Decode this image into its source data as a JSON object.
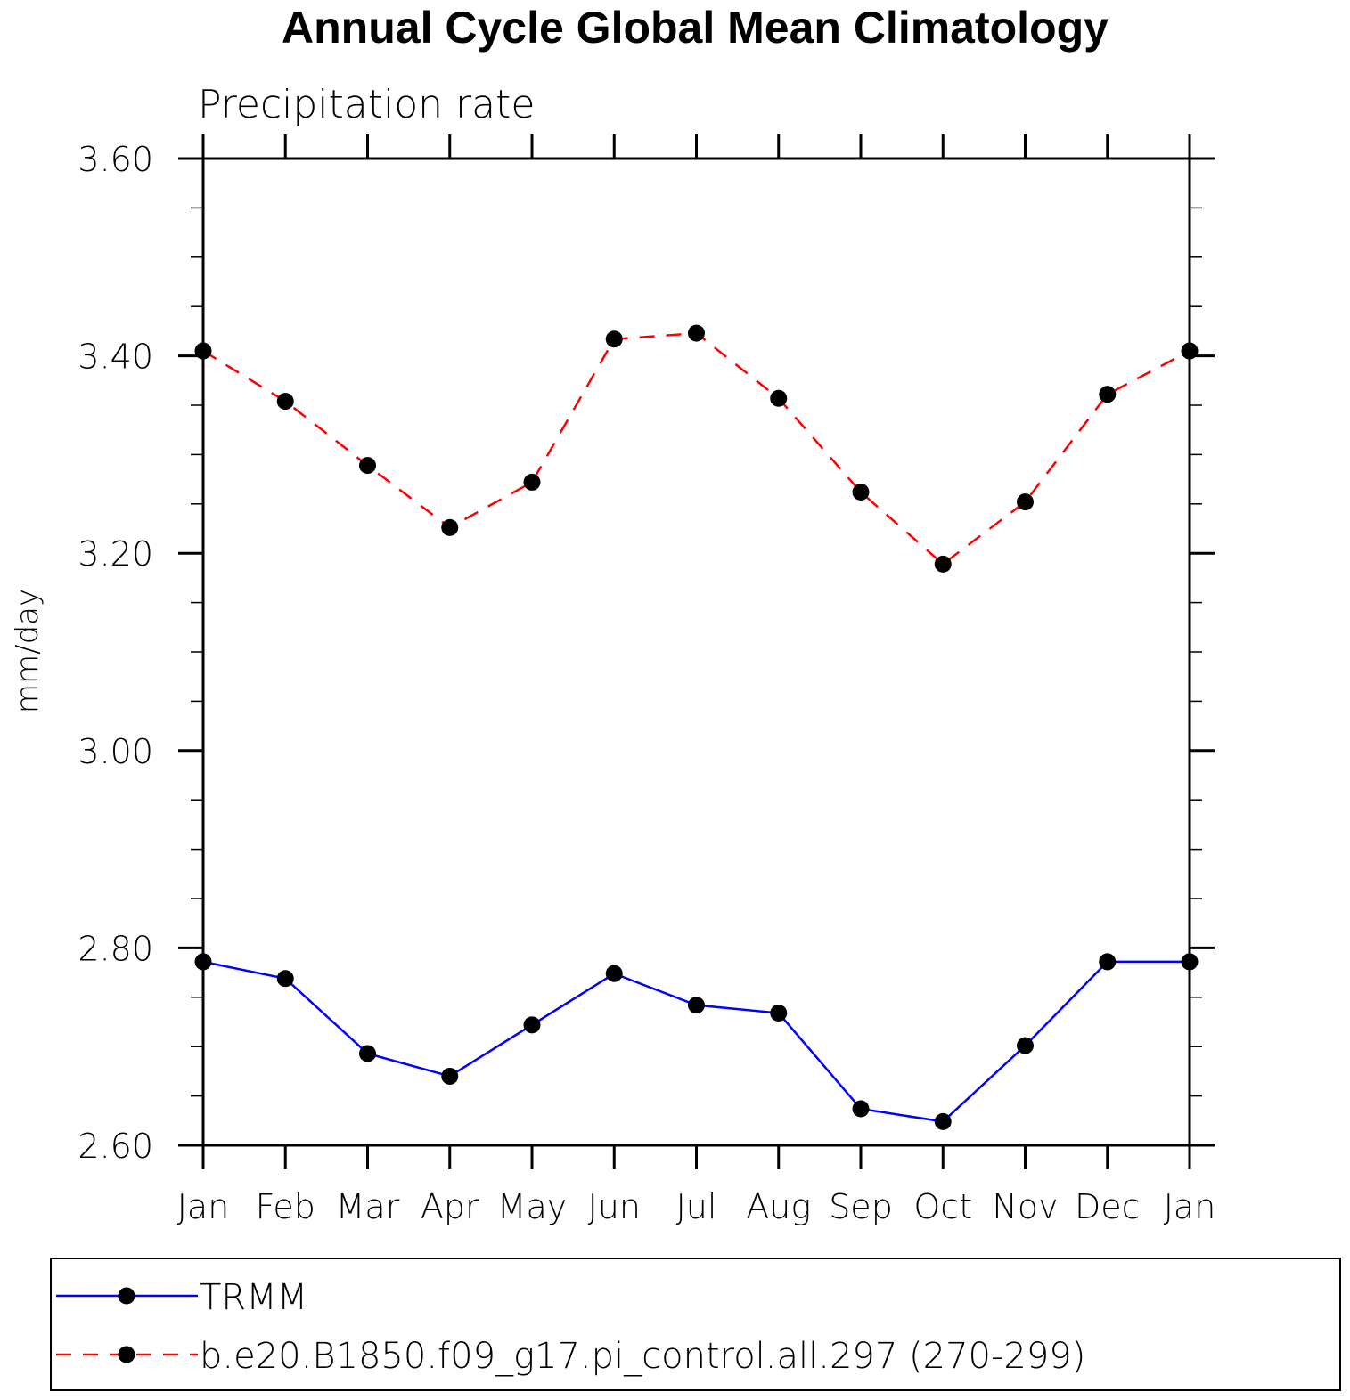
{
  "chart_data": {
    "type": "line",
    "title": "Annual Cycle Global Mean Climatology",
    "subtitle": "Precipitation rate",
    "xlabel": "",
    "ylabel": "mm/day",
    "categories": [
      "Jan",
      "Feb",
      "Mar",
      "Apr",
      "May",
      "Jun",
      "Jul",
      "Aug",
      "Sep",
      "Oct",
      "Nov",
      "Dec",
      "Jan"
    ],
    "ylim": [
      2.6,
      3.6
    ],
    "yticks": [
      "2.60",
      "2.80",
      "3.00",
      "3.20",
      "3.40",
      "3.60"
    ],
    "grid": false,
    "legend_placement": "bottom",
    "series": [
      {
        "name": "TRMM",
        "color": "#0000ff",
        "line_style": "solid",
        "marker": "filled-circle",
        "values": [
          2.786,
          2.769,
          2.693,
          2.67,
          2.722,
          2.774,
          2.742,
          2.734,
          2.637,
          2.624,
          2.701,
          2.786,
          2.786
        ]
      },
      {
        "name": "b.e20.B1850.f09_g17.pi_control.all.297 (270-299)",
        "color": "#ff0000",
        "line_style": "dashed",
        "marker": "filled-circle",
        "values": [
          3.405,
          3.354,
          3.289,
          3.226,
          3.272,
          3.417,
          3.423,
          3.357,
          3.262,
          3.189,
          3.252,
          3.361,
          3.405
        ]
      }
    ]
  }
}
